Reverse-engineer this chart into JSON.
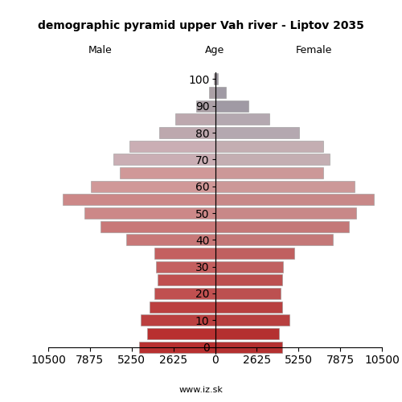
{
  "title": "demographic pyramid upper Vah river - Liptov 2035",
  "label_male": "Male",
  "label_female": "Female",
  "label_age": "Age",
  "footer": "www.iz.sk",
  "age_labels": [
    "0",
    "10",
    "20",
    "30",
    "40",
    "50",
    "60",
    "70",
    "80",
    "90",
    "100"
  ],
  "age_ticks": [
    0,
    2,
    4,
    6,
    8,
    10,
    12,
    14,
    16,
    18,
    20
  ],
  "male": [
    4800,
    4300,
    4700,
    4100,
    3800,
    3600,
    3700,
    3800,
    5600,
    7200,
    8200,
    9600,
    7800,
    6000,
    6400,
    5400,
    3500,
    2500,
    1200,
    400,
    100
  ],
  "female": [
    4200,
    4000,
    4700,
    4200,
    4100,
    4200,
    4300,
    5000,
    7400,
    8400,
    8900,
    10000,
    8800,
    6800,
    7200,
    6800,
    5300,
    3400,
    2100,
    700,
    200
  ],
  "xlim": 10500,
  "xticks": [
    0,
    2625,
    5250,
    7875,
    10500
  ],
  "xtick_labels": [
    "0",
    "2625",
    "5250",
    "7875",
    "10500"
  ],
  "age_color_thresholds": [
    65,
    55,
    0
  ],
  "male_colors": [
    "#c8aab2",
    "#d48a8a",
    "#c03838"
  ],
  "female_colors": [
    "#b8a8b0",
    "#d08888",
    "#c03838"
  ],
  "old_male_colors": [
    "#b0a2a8",
    "#bea8ae"
  ],
  "old_female_colors": [
    "#a8a0a8",
    "#b8a8b0"
  ],
  "bg_color": "#ffffff",
  "bar_edge_color": "#999999",
  "bar_linewidth": 0.4,
  "bar_height": 0.85
}
